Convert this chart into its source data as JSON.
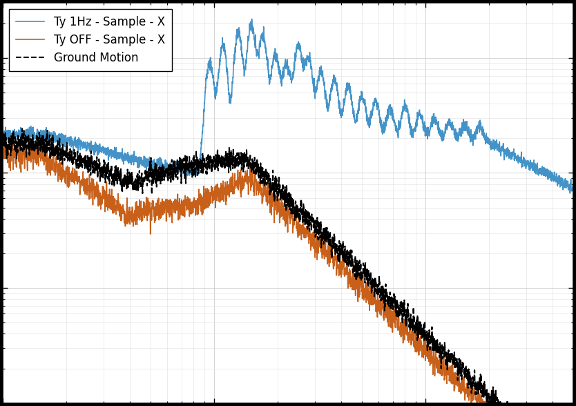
{
  "legend": [
    {
      "label": "Ty 1Hz - Sample - X",
      "color": "#4393c8",
      "linestyle": "-",
      "linewidth": 1.2
    },
    {
      "label": "Ty OFF - Sample - X",
      "color": "#c8601a",
      "linestyle": "-",
      "linewidth": 1.2
    },
    {
      "label": "Ground Motion",
      "color": "#000000",
      "linestyle": "--",
      "linewidth": 1.5
    }
  ],
  "xlim": [
    1,
    500
  ],
  "ylim": [
    1e-09,
    3e-06
  ],
  "background_color": "#ffffff",
  "fig_facecolor": "#000000",
  "legend_fontsize": 12,
  "tick_fontsize": 11
}
